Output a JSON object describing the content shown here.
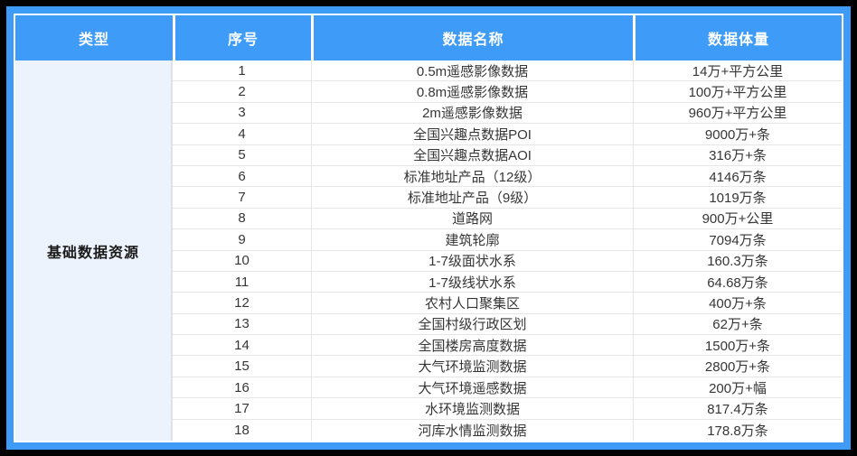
{
  "table": {
    "headers": [
      "类型",
      "序号",
      "数据名称",
      "数据体量"
    ],
    "category": "基础数据资源",
    "rows": [
      {
        "index": "1",
        "name": "0.5m遥感影像数据",
        "volume": "14万+平方公里"
      },
      {
        "index": "2",
        "name": "0.8m遥感影像数据",
        "volume": "100万+平方公里"
      },
      {
        "index": "3",
        "name": "2m遥感影像数据",
        "volume": "960万+平方公里"
      },
      {
        "index": "4",
        "name": "全国兴趣点数据POI",
        "volume": "9000万+条"
      },
      {
        "index": "5",
        "name": "全国兴趣点数据AOI",
        "volume": "316万+条"
      },
      {
        "index": "6",
        "name": "标准地址产品（12级）",
        "volume": "4146万条"
      },
      {
        "index": "7",
        "name": "标准地址产品（9级）",
        "volume": "1019万条"
      },
      {
        "index": "8",
        "name": "道路网",
        "volume": "900万+公里"
      },
      {
        "index": "9",
        "name": "建筑轮廓",
        "volume": "7094万条"
      },
      {
        "index": "10",
        "name": "1-7级面状水系",
        "volume": "160.3万条"
      },
      {
        "index": "11",
        "name": "1-7级线状水系",
        "volume": "64.68万条"
      },
      {
        "index": "12",
        "name": "农村人口聚集区",
        "volume": "400万+条"
      },
      {
        "index": "13",
        "name": "全国村级行政区划",
        "volume": "62万+条"
      },
      {
        "index": "14",
        "name": "全国楼房高度数据",
        "volume": "1500万+条"
      },
      {
        "index": "15",
        "name": "大气环境监测数据",
        "volume": "2800万+条"
      },
      {
        "index": "16",
        "name": "大气环境遥感数据",
        "volume": "200万+幅"
      },
      {
        "index": "17",
        "name": "水环境监测数据",
        "volume": "817.4万条"
      },
      {
        "index": "18",
        "name": "河库水情监测数据",
        "volume": "178.8万条"
      }
    ]
  },
  "colors": {
    "accent_blue": "#3E9BF8",
    "category_bg": "#EDF3FC",
    "outer_border": "#000000",
    "grid_line": "#E6E6E6",
    "header_text": "#FFFFFF",
    "body_text": "#363636"
  },
  "chart_data": {
    "type": "table",
    "title": "基础数据资源",
    "columns": [
      "类型",
      "序号",
      "数据名称",
      "数据体量"
    ],
    "rows": [
      [
        "基础数据资源",
        "1",
        "0.5m遥感影像数据",
        "14万+平方公里"
      ],
      [
        "基础数据资源",
        "2",
        "0.8m遥感影像数据",
        "100万+平方公里"
      ],
      [
        "基础数据资源",
        "3",
        "2m遥感影像数据",
        "960万+平方公里"
      ],
      [
        "基础数据资源",
        "4",
        "全国兴趣点数据POI",
        "9000万+条"
      ],
      [
        "基础数据资源",
        "5",
        "全国兴趣点数据AOI",
        "316万+条"
      ],
      [
        "基础数据资源",
        "6",
        "标准地址产品（12级）",
        "4146万条"
      ],
      [
        "基础数据资源",
        "7",
        "标准地址产品（9级）",
        "1019万条"
      ],
      [
        "基础数据资源",
        "8",
        "道路网",
        "900万+公里"
      ],
      [
        "基础数据资源",
        "9",
        "建筑轮廓",
        "7094万条"
      ],
      [
        "基础数据资源",
        "10",
        "1-7级面状水系",
        "160.3万条"
      ],
      [
        "基础数据资源",
        "11",
        "1-7级线状水系",
        "64.68万条"
      ],
      [
        "基础数据资源",
        "12",
        "农村人口聚集区",
        "400万+条"
      ],
      [
        "基础数据资源",
        "13",
        "全国村级行政区划",
        "62万+条"
      ],
      [
        "基础数据资源",
        "14",
        "全国楼房高度数据",
        "1500万+条"
      ],
      [
        "基础数据资源",
        "15",
        "大气环境监测数据",
        "2800万+条"
      ],
      [
        "基础数据资源",
        "16",
        "大气环境遥感数据",
        "200万+幅"
      ],
      [
        "基础数据资源",
        "17",
        "水环境监测数据",
        "817.4万条"
      ],
      [
        "基础数据资源",
        "18",
        "河库水情监测数据",
        "178.8万条"
      ]
    ]
  }
}
